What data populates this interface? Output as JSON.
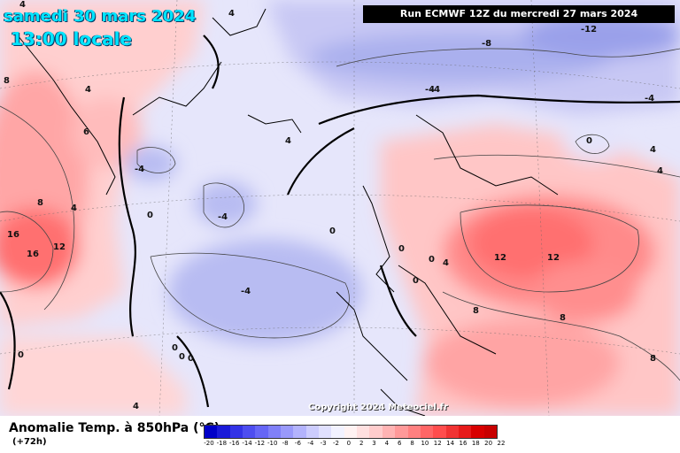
{
  "header": {
    "date": "samedi 30 mars 2024",
    "time": "13:00 locale",
    "run_info": "Run ECMWF 12Z du mercredi 27 mars 2024"
  },
  "copyright": "Copyright 2024 Meteociel.fr",
  "footer": {
    "title": "Anomalie Temp. à 850hPa (°C)",
    "lead": "(+72h)"
  },
  "legend": {
    "ticks": [
      "-20",
      "-18",
      "-16",
      "-14",
      "-12",
      "-10",
      "-8",
      "-6",
      "-4",
      "-3",
      "-2",
      "0",
      "2",
      "3",
      "4",
      "6",
      "8",
      "10",
      "12",
      "14",
      "16",
      "18",
      "20",
      "22"
    ],
    "colors": [
      "#0000c8",
      "#1a1ad8",
      "#3333e6",
      "#4d4df0",
      "#6666f6",
      "#8080f8",
      "#9999fa",
      "#b3b3fc",
      "#ccccfd",
      "#e0e0fe",
      "#f2f2ff",
      "#fff2f2",
      "#ffe0e0",
      "#ffcccc",
      "#ffb3b3",
      "#ff9999",
      "#ff8080",
      "#ff6666",
      "#ff4d4d",
      "#f03333",
      "#e61a1a",
      "#d80000",
      "#c80000"
    ]
  },
  "map_labels": [
    {
      "text": "4",
      "name": "label-4-nw"
    },
    {
      "text": "4",
      "name": "label-4-north"
    },
    {
      "text": "8",
      "name": "label-8-west"
    },
    {
      "text": "4",
      "name": "label-4-greenland"
    },
    {
      "text": "-8",
      "name": "label-minus8-north"
    },
    {
      "text": "-12",
      "name": "label-minus12-ne"
    },
    {
      "text": "-4",
      "name": "label-minus4-norway"
    },
    {
      "text": "-4",
      "name": "label-minus4-east"
    },
    {
      "text": "6",
      "name": "label-6-greenland"
    },
    {
      "text": "-4",
      "name": "label-minus4-iceland"
    },
    {
      "text": "-4",
      "name": "label-minus4-sea"
    },
    {
      "text": "4",
      "name": "label-4-scandinavia"
    },
    {
      "text": "0",
      "name": "label-0-russia"
    },
    {
      "text": "4",
      "name": "label-4-russia"
    },
    {
      "text": "4",
      "name": "label-4-far-east"
    },
    {
      "text": "8",
      "name": "label-8-labrador"
    },
    {
      "text": "4",
      "name": "label-4-labrador"
    },
    {
      "text": "0",
      "name": "label-0-atlantic"
    },
    {
      "text": "-4",
      "name": "label-minus4-mid-atlantic"
    },
    {
      "text": "16",
      "name": "label-16-north"
    },
    {
      "text": "12",
      "name": "label-12-canada"
    },
    {
      "text": "16",
      "name": "label-16-south"
    },
    {
      "text": "0",
      "name": "label-0-ireland"
    },
    {
      "text": "0",
      "name": "label-0-uk-south"
    },
    {
      "text": "0",
      "name": "label-0-channel"
    },
    {
      "text": "4",
      "name": "label-4-channel"
    },
    {
      "text": "0",
      "name": "label-0-biscay"
    },
    {
      "text": "12",
      "name": "label-12-germany"
    },
    {
      "text": "12",
      "name": "label-12-poland"
    },
    {
      "text": "-4",
      "name": "label-minus4-atlantic-south"
    },
    {
      "text": "8",
      "name": "label-8-france"
    },
    {
      "text": "8",
      "name": "label-8-balkans"
    },
    {
      "text": "8",
      "name": "label-8-east"
    },
    {
      "text": "0",
      "name": "label-0-azores-1"
    },
    {
      "text": "0",
      "name": "label-0-azores-2"
    },
    {
      "text": "0",
      "name": "label-0-west"
    },
    {
      "text": "4",
      "name": "label-4-southwest"
    },
    {
      "text": "0",
      "name": "label-0-south"
    }
  ]
}
